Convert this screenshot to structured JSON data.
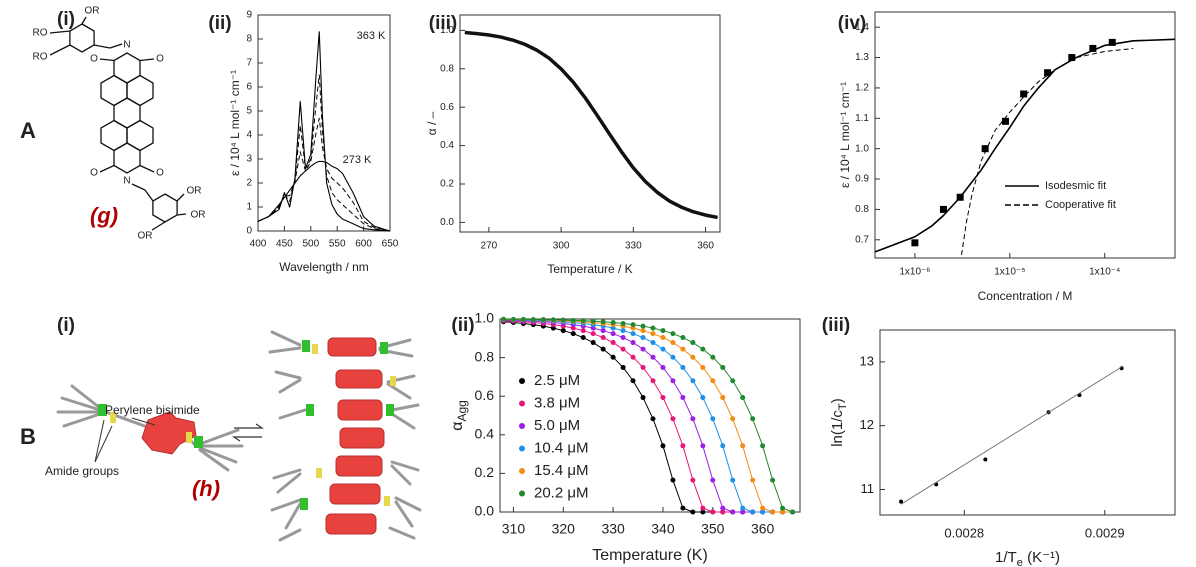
{
  "figure": {
    "row_labels": [
      "A",
      "B"
    ],
    "panel_labels": [
      "(i)",
      "(i)"
    ]
  },
  "structure": {
    "labels": [
      "OR",
      "RO",
      "RO",
      "O",
      "N",
      "O",
      "O",
      "N",
      "O",
      "OR",
      "OR",
      "OR"
    ],
    "compound": "(g)"
  },
  "cartoon": {
    "labels": [
      "Perylene bisimide",
      "Amide groups"
    ],
    "compound": "(h)"
  },
  "chart_data": [
    {
      "type": "line",
      "panel_label": "(ii)",
      "xlabel": "Wavelength / nm",
      "ylabel": "ε / 10⁴ L mol⁻¹ cm⁻¹",
      "x": [
        400,
        420,
        440,
        450,
        460,
        470,
        480,
        490,
        500,
        510,
        516,
        522,
        530,
        540,
        550,
        560,
        580,
        600,
        620,
        650
      ],
      "series": [
        {
          "name": "363 K",
          "color": "#000000",
          "values": [
            0.4,
            0.6,
            0.9,
            1.6,
            1.0,
            2.2,
            5.4,
            2.6,
            3.2,
            6.5,
            8.3,
            4.8,
            2.0,
            1.1,
            0.7,
            0.5,
            0.3,
            0.1,
            0.05,
            0
          ]
        },
        {
          "color": "#000000",
          "dash": true,
          "values": [
            0.4,
            0.6,
            0.97,
            1.53,
            1.23,
            2.13,
            4.4,
            2.6,
            3.0,
            5.3,
            6.5,
            4.2,
            2.3,
            1.6,
            1.3,
            1.1,
            0.7,
            0.3,
            0.1,
            0
          ]
        },
        {
          "color": "#000000",
          "dash": true,
          "values": [
            0.4,
            0.6,
            1.03,
            1.47,
            1.47,
            2.07,
            3.3,
            2.5,
            2.9,
            4.1,
            4.7,
            3.5,
            2.6,
            2.2,
            2.0,
            1.8,
            1.2,
            0.4,
            0.15,
            0
          ]
        },
        {
          "name": "273 K",
          "color": "#000000",
          "values": [
            0.4,
            0.6,
            1.1,
            1.4,
            1.7,
            2.0,
            2.3,
            2.5,
            2.7,
            2.85,
            2.9,
            2.9,
            2.85,
            2.7,
            2.6,
            2.4,
            1.6,
            0.6,
            0.2,
            0
          ]
        }
      ],
      "xlim": [
        400,
        650
      ],
      "ylim": [
        0,
        9
      ],
      "xticks": [
        400,
        450,
        500,
        550,
        600,
        650
      ],
      "yticks": [
        0,
        1,
        2,
        3,
        4,
        5,
        6,
        7,
        8,
        9
      ]
    },
    {
      "type": "line",
      "panel_label": "(iii)",
      "xlabel": "Temperature / K",
      "ylabel": "α / –",
      "x": [
        260,
        265,
        270,
        275,
        280,
        285,
        290,
        295,
        300,
        305,
        310,
        315,
        320,
        325,
        330,
        335,
        340,
        345,
        350,
        355,
        360,
        365
      ],
      "series": [
        {
          "color": "#111111",
          "values": [
            0.989,
            0.983,
            0.976,
            0.965,
            0.949,
            0.927,
            0.896,
            0.855,
            0.799,
            0.731,
            0.649,
            0.557,
            0.462,
            0.369,
            0.284,
            0.213,
            0.156,
            0.111,
            0.079,
            0.055,
            0.038,
            0.026
          ]
        }
      ],
      "xlim": [
        258,
        366
      ],
      "ylim": [
        -0.05,
        1.08
      ],
      "xticks": [
        270,
        300,
        330,
        360
      ],
      "yticks": [
        {
          "value": 0,
          "label": "0.0"
        },
        0.2,
        0.4,
        0.6,
        0.8,
        {
          "value": 1,
          "label": "1.0"
        }
      ]
    },
    {
      "type": "line",
      "panel_label": "(iv)",
      "logx": true,
      "legend": "lower right",
      "xlabel": "Concentration / M",
      "ylabel": "ε / 10⁴ L mol⁻¹ cm⁻¹",
      "series": [
        {
          "color": "#000000",
          "marker": "square",
          "line": false,
          "x": [
            1e-06,
            2e-06,
            3e-06,
            5.5e-06,
            9e-06,
            1.4e-05,
            2.5e-05,
            4.5e-05,
            7.5e-05,
            0.00012
          ],
          "values": [
            0.69,
            0.8,
            0.84,
            1.0,
            1.09,
            1.18,
            1.25,
            1.3,
            1.33,
            1.35
          ]
        },
        {
          "name": "Isodesmic fit",
          "color": "#000000",
          "x": [
            3.8e-07,
            1e-06,
            1.5e-06,
            2e-06,
            3e-06,
            5e-06,
            7e-06,
            1e-05,
            1.4e-05,
            2e-05,
            3e-05,
            5e-05,
            0.0001,
            0.0002,
            0.00055
          ],
          "values": [
            0.66,
            0.71,
            0.745,
            0.78,
            0.84,
            0.93,
            1.0,
            1.07,
            1.14,
            1.2,
            1.26,
            1.3,
            1.34,
            1.355,
            1.36
          ]
        },
        {
          "name": "Cooperative fit",
          "color": "#000000",
          "dash": true,
          "x": [
            3.1e-06,
            3.5e-06,
            4e-06,
            5e-06,
            7e-06,
            1e-05,
            1.5e-05,
            2e-05,
            3e-05,
            5e-05,
            0.0001,
            0.0002
          ],
          "values": [
            0.65,
            0.76,
            0.85,
            0.96,
            1.06,
            1.12,
            1.18,
            1.22,
            1.26,
            1.3,
            1.32,
            1.33
          ]
        }
      ],
      "xlim": [
        3.8e-07,
        0.00055
      ],
      "ylim": [
        0.64,
        1.45
      ],
      "xticks": [
        {
          "value": 1e-06,
          "label": "1x10⁻⁶"
        },
        {
          "value": 1e-05,
          "label": "1x10⁻⁵"
        },
        {
          "value": 0.0001,
          "label": "1x10⁻⁴"
        }
      ],
      "yticks": [
        0.7,
        0.8,
        0.9,
        {
          "value": 1,
          "label": "1.0"
        },
        1.1,
        1.2,
        1.3,
        1.4
      ]
    },
    {
      "type": "line",
      "panel_label": "(ii)",
      "legend": "upper left",
      "xlabel": "Temperature (K)",
      "ylabel_parts": [
        {
          "text": "α"
        },
        {
          "text": "Agg",
          "sub": true
        }
      ],
      "x": [
        308,
        310,
        312,
        314,
        316,
        318,
        320,
        322,
        324,
        326,
        328,
        330,
        332,
        334,
        336,
        338,
        340,
        342,
        344,
        346,
        348,
        350,
        352,
        354,
        356,
        358,
        360,
        362,
        364,
        366
      ],
      "series": [
        {
          "name": "2.5 μM",
          "color": "#000000",
          "marker": "circle",
          "values": [
            0.986,
            0.982,
            0.977,
            0.971,
            0.963,
            0.953,
            0.94,
            0.924,
            0.904,
            0.878,
            0.844,
            0.802,
            0.749,
            0.68,
            0.593,
            0.483,
            0.343,
            0.165,
            0.02,
            0,
            0,
            0,
            0,
            0,
            0,
            0,
            0,
            0,
            0,
            0
          ]
        },
        {
          "name": "3.8 μM",
          "color": "#e8157a",
          "marker": "circle",
          "values": [
            0.991,
            0.989,
            0.986,
            0.982,
            0.977,
            0.971,
            0.963,
            0.953,
            0.94,
            0.924,
            0.904,
            0.878,
            0.844,
            0.802,
            0.749,
            0.68,
            0.593,
            0.483,
            0.343,
            0.165,
            0.02,
            0,
            0,
            0,
            0,
            0,
            0,
            0,
            0,
            0
          ]
        },
        {
          "name": "5.0 μM",
          "color": "#9b1fe8",
          "marker": "circle",
          "values": [
            0.995,
            0.993,
            0.991,
            0.989,
            0.986,
            0.982,
            0.977,
            0.971,
            0.963,
            0.953,
            0.94,
            0.924,
            0.904,
            0.878,
            0.844,
            0.802,
            0.749,
            0.68,
            0.593,
            0.483,
            0.343,
            0.165,
            0.02,
            0,
            0,
            0,
            0,
            0,
            0,
            0
          ]
        },
        {
          "name": "10.4 μM",
          "color": "#1e90e8",
          "marker": "circle",
          "values": [
            0.997,
            0.996,
            0.995,
            0.993,
            0.991,
            0.989,
            0.986,
            0.982,
            0.977,
            0.971,
            0.963,
            0.953,
            0.94,
            0.924,
            0.904,
            0.878,
            0.844,
            0.802,
            0.749,
            0.68,
            0.593,
            0.483,
            0.343,
            0.165,
            0.02,
            0,
            0,
            0,
            0,
            0
          ]
        },
        {
          "name": "15.4 μM",
          "color": "#f58a12",
          "marker": "circle",
          "values": [
            0.998,
            0.997,
            0.997,
            0.996,
            0.995,
            0.993,
            0.991,
            0.989,
            0.986,
            0.982,
            0.977,
            0.971,
            0.963,
            0.953,
            0.94,
            0.924,
            0.904,
            0.878,
            0.844,
            0.802,
            0.749,
            0.68,
            0.593,
            0.483,
            0.343,
            0.165,
            0.02,
            0,
            0,
            0
          ]
        },
        {
          "name": "20.2 μM",
          "color": "#1f8a2e",
          "marker": "circle",
          "values": [
            0.999,
            0.998,
            0.998,
            0.997,
            0.997,
            0.996,
            0.995,
            0.993,
            0.991,
            0.989,
            0.986,
            0.982,
            0.977,
            0.971,
            0.963,
            0.953,
            0.94,
            0.924,
            0.904,
            0.878,
            0.844,
            0.802,
            0.749,
            0.68,
            0.593,
            0.483,
            0.343,
            0.165,
            0.02,
            0
          ]
        }
      ],
      "xlim": [
        307.3,
        367.5
      ],
      "ylim": [
        0,
        1
      ],
      "xticks": [
        310,
        320,
        330,
        340,
        350,
        360
      ],
      "yticks": [
        {
          "value": 0,
          "label": "0.0"
        },
        0.2,
        0.4,
        0.6,
        0.8,
        {
          "value": 1,
          "label": "1.0"
        }
      ]
    },
    {
      "type": "line",
      "panel_label": "(iii)",
      "xlabel_parts": [
        {
          "text": "1/"
        },
        {
          "text": "T"
        },
        {
          "text": "e",
          "sub": true
        },
        {
          "text": " (K⁻¹)"
        }
      ],
      "ylabel_parts": [
        {
          "text": "ln(1/"
        },
        {
          "text": "c"
        },
        {
          "text": "T",
          "sub": true
        },
        {
          "text": ")"
        }
      ],
      "series": [
        {
          "color": "#000000",
          "marker": "circle",
          "line": false,
          "x": [
            0.002755,
            0.00278,
            0.002815,
            0.00286,
            0.002882,
            0.002912
          ],
          "values": [
            10.81,
            11.08,
            11.47,
            12.21,
            12.48,
            12.9
          ]
        },
        {
          "color": "#777777",
          "x": [
            0.002755,
            0.002912
          ],
          "values": [
            10.77,
            12.92
          ]
        }
      ],
      "xlim": [
        0.00274,
        0.00295
      ],
      "ylim": [
        10.6,
        13.5
      ],
      "xticks": [
        0.0028,
        0.0029
      ],
      "yticks": [
        11,
        12,
        13
      ]
    }
  ]
}
